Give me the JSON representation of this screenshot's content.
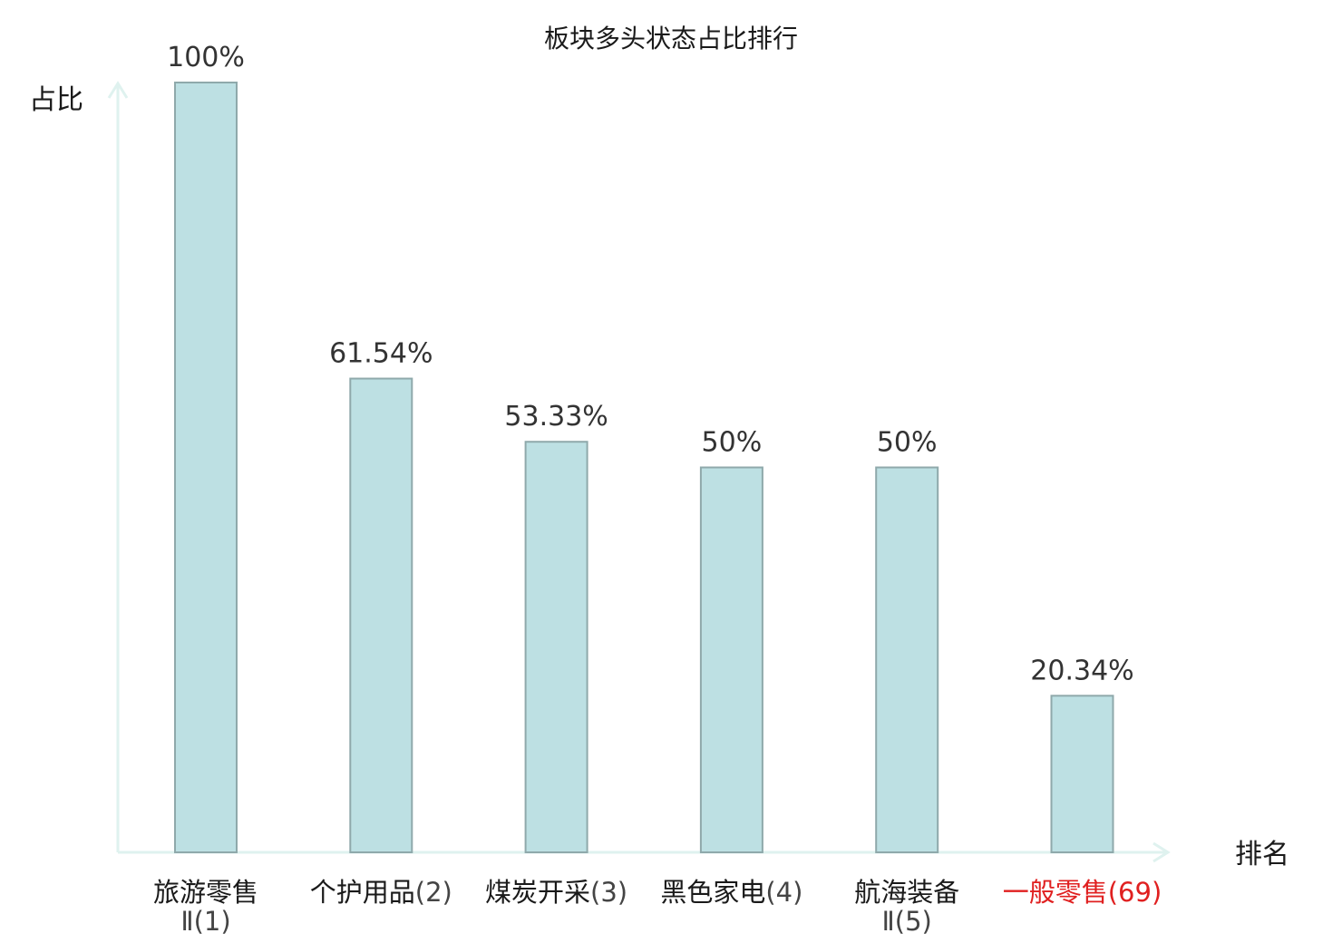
{
  "chart_data": {
    "type": "bar",
    "title": "板块多头状态占比排行",
    "ylabel": "占比",
    "xlabel": "排名",
    "ylim": [
      0,
      100
    ],
    "grid": false,
    "categories": [
      {
        "name": "旅游零售",
        "name_line2": "Ⅱ",
        "rank": "(1)",
        "highlight": false
      },
      {
        "name": "个护用品",
        "name_line2": "",
        "rank": "(2)",
        "highlight": false
      },
      {
        "name": "煤炭开采",
        "name_line2": "",
        "rank": "(3)",
        "highlight": false
      },
      {
        "name": "黑色家电",
        "name_line2": "",
        "rank": "(4)",
        "highlight": false
      },
      {
        "name": "航海装备",
        "name_line2": "Ⅱ",
        "rank": "(5)",
        "highlight": false
      },
      {
        "name": "一般零售",
        "name_line2": "",
        "rank": "(69)",
        "highlight": true
      }
    ],
    "values": [
      100,
      61.54,
      53.33,
      50,
      50,
      20.34
    ],
    "value_labels": [
      "100%",
      "61.54%",
      "53.33%",
      "50%",
      "50%",
      "20.34%"
    ],
    "colors": {
      "bar_fill": "#bde0e3",
      "bar_stroke": "#8fa9ab",
      "axis": "#dff2ef",
      "highlight_text": "#e02020",
      "normal_text": "#1a1a1a",
      "rank_text": "#444444"
    }
  }
}
